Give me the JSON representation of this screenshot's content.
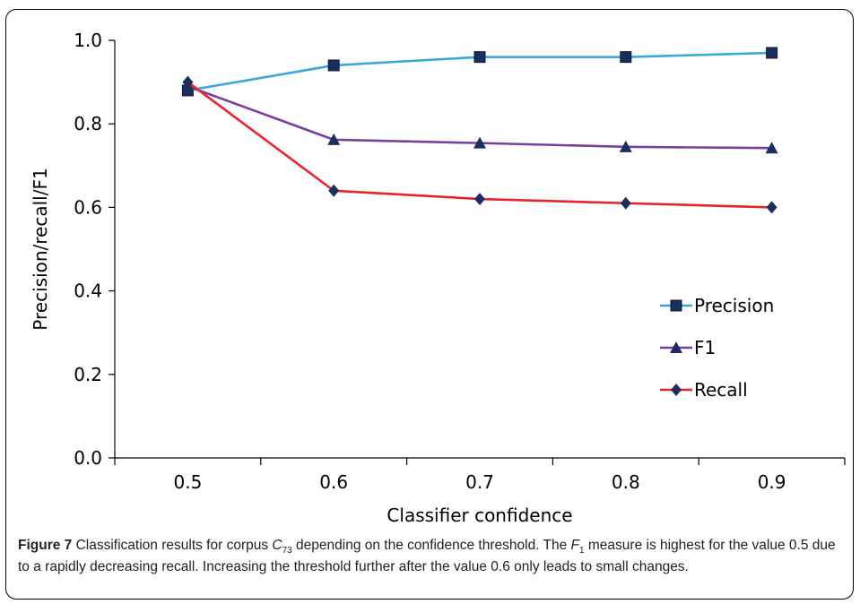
{
  "chart_data": {
    "type": "line",
    "xlabel": "Classifier confidence",
    "ylabel": "Precision/recall/F1",
    "x": [
      0.5,
      0.6,
      0.7,
      0.8,
      0.9
    ],
    "x_tick_labels": [
      "0.5",
      "0.6",
      "0.7",
      "0.8",
      "0.9"
    ],
    "ylim": [
      0.0,
      1.0
    ],
    "y_tick_labels": [
      "0.0",
      "0.2",
      "0.4",
      "0.6",
      "0.8",
      "1.0"
    ],
    "grid": false,
    "legend_position": "lower-right",
    "series": [
      {
        "name": "Precision",
        "values": [
          0.88,
          0.94,
          0.96,
          0.96,
          0.97
        ],
        "color": "#3aa8d8",
        "marker": "square"
      },
      {
        "name": "F1",
        "values": [
          0.89,
          0.762,
          0.754,
          0.745,
          0.742
        ],
        "color": "#7a3f9e",
        "marker": "triangle"
      },
      {
        "name": "Recall",
        "values": [
          0.9,
          0.64,
          0.62,
          0.61,
          0.6
        ],
        "color": "#e8242a",
        "marker": "diamond"
      }
    ]
  },
  "caption": {
    "label": "Figure 7",
    "text_1": " Classification results for corpus ",
    "corpus_symbol": "C",
    "corpus_subscript": "73",
    "text_2": " depending on the confidence threshold. The ",
    "measure_symbol": "F",
    "measure_subscript": "1",
    "text_3": " measure is highest for the value 0.5 due to a rapidly decreasing recall. Increasing the threshold further after the value 0.6 only leads to small changes."
  }
}
